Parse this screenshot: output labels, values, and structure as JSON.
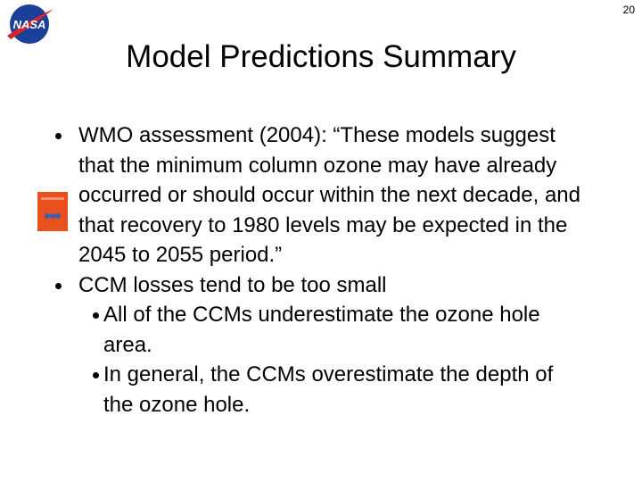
{
  "page_number": "20",
  "logo": {
    "text": "NASA"
  },
  "title": "Model Predictions Summary",
  "bullets": [
    {
      "text": "WMO assessment (2004): “These models suggest that the minimum column ozone may have already occurred or should occur within the next decade, and that recovery to 1980 levels may be expected in the 2045 to 2055 period.”",
      "sub": []
    },
    {
      "text": "CCM losses tend to be too small",
      "sub": [
        "All of the CCMs underestimate the ozone hole area.",
        "In general, the CCMs overestimate the depth of the ozone hole."
      ]
    }
  ]
}
